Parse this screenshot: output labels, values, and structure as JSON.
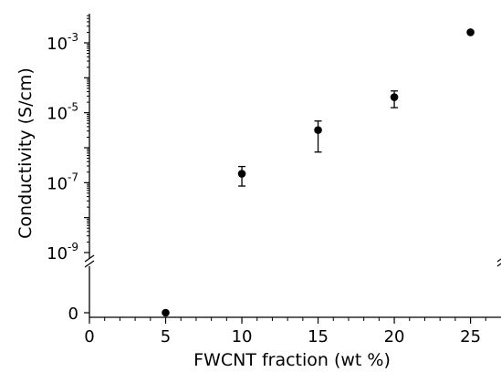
{
  "chart_data": {
    "type": "scatter",
    "xlabel": "FWCNT fraction (wt %)",
    "ylabel": "Conductivity (S/cm)",
    "xlim": [
      0,
      27
    ],
    "x_ticks": [
      0,
      5,
      10,
      15,
      20,
      25
    ],
    "y_scale": "log (broken axis with linear segment for 0)",
    "ylim_log": [
      1e-09,
      0.01
    ],
    "y_tick_labels": [
      {
        "base": "10",
        "exp": "-3"
      },
      {
        "base": "10",
        "exp": "-5"
      },
      {
        "base": "10",
        "exp": "-7"
      },
      {
        "base": "10",
        "exp": "-9"
      },
      {
        "base": "0",
        "exp": ""
      }
    ],
    "points": [
      {
        "x": 5,
        "y": 0
      },
      {
        "x": 10,
        "y": 1.8e-07,
        "y_low": 8e-08,
        "y_high": 2.9e-07
      },
      {
        "x": 15,
        "y": 3.2e-06,
        "y_low": 7.5e-07,
        "y_high": 5.8e-06
      },
      {
        "x": 20,
        "y": 2.8e-05,
        "y_low": 1.4e-05,
        "y_high": 4.2e-05
      },
      {
        "x": 25,
        "y": 0.002
      }
    ],
    "grid": false,
    "legend": "none"
  }
}
